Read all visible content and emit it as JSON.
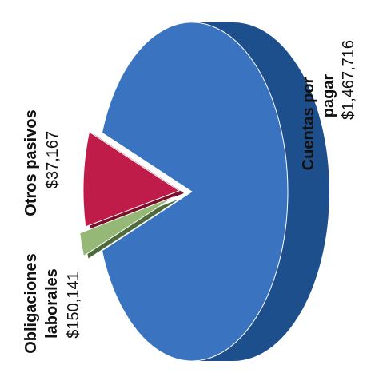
{
  "chart_data": {
    "type": "pie",
    "style": "3d-exploded",
    "orientation": "rotated-90-counterclockwise",
    "slices": [
      {
        "label_lines": [
          "Cuentas por",
          "pagar"
        ],
        "value_text": "$1,467,716",
        "value": 1467716,
        "color": "#3a73bf",
        "side_color": "#1d4f8c",
        "exploded": false
      },
      {
        "label_lines": [
          "Obligaciones",
          "laborales"
        ],
        "value_text": "$150,141",
        "value": 150141,
        "color": "#c01c4a",
        "side_color": "#7d0f2c",
        "exploded": true
      },
      {
        "label_lines": [
          "Otros pasivos"
        ],
        "value_text": "$37,167",
        "value": 37167,
        "color": "#95b876",
        "side_color": "#4e6b3c",
        "exploded": true
      }
    ],
    "legend": "none"
  }
}
